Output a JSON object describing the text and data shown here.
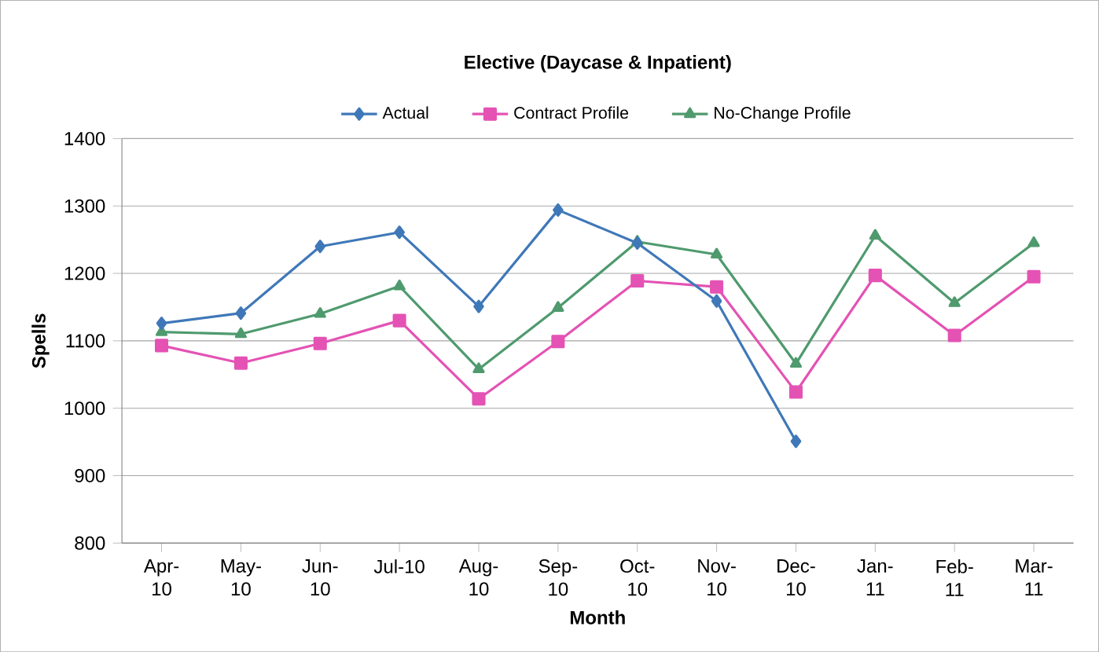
{
  "chart_data": {
    "type": "line",
    "title": "Elective (Daycase & Inpatient)",
    "xlabel": "Month",
    "ylabel": "Spells",
    "categories": [
      "Apr-10",
      "May-10",
      "Jun-10",
      "Jul-10",
      "Aug-10",
      "Sep-10",
      "Oct-10",
      "Nov-10",
      "Dec-10",
      "Jan-11",
      "Feb-11",
      "Mar-11"
    ],
    "series": [
      {
        "name": "Actual",
        "color": "#3f78b8",
        "marker": "diamond",
        "values": [
          1126,
          1141,
          1240,
          1261,
          1151,
          1294,
          1245,
          1159,
          951,
          null,
          null,
          null
        ]
      },
      {
        "name": "Contract Profile",
        "color": "#e452b4",
        "marker": "square",
        "values": [
          1093,
          1067,
          1096,
          1130,
          1014,
          1099,
          1189,
          1180,
          1024,
          1197,
          1108,
          1195
        ]
      },
      {
        "name": "No-Change Profile",
        "color": "#4f9a6e",
        "marker": "triangle",
        "values": [
          1113,
          1110,
          1140,
          1181,
          1058,
          1149,
          1247,
          1228,
          1066,
          1256,
          1156,
          1245
        ]
      }
    ],
    "ylim": [
      800,
      1400
    ],
    "yticks": [
      800,
      900,
      1000,
      1100,
      1200,
      1300,
      1400
    ],
    "grid": "y",
    "legend": "top",
    "line_style": "solid"
  }
}
